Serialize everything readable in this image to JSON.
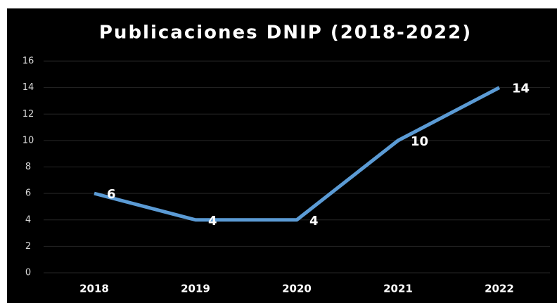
{
  "chart_data": {
    "type": "line",
    "title": "Publicaciones DNIP (2018-2022)",
    "categories": [
      "2018",
      "2019",
      "2020",
      "2021",
      "2022"
    ],
    "series": [
      {
        "name": "Publicaciones",
        "color": "#5b9bd5",
        "values": [
          6,
          4,
          4,
          10,
          14
        ]
      }
    ],
    "ylim": [
      0,
      16
    ],
    "yticks": [
      0,
      2,
      4,
      6,
      8,
      10,
      12,
      14,
      16
    ],
    "grid": true,
    "data_labels": true
  }
}
